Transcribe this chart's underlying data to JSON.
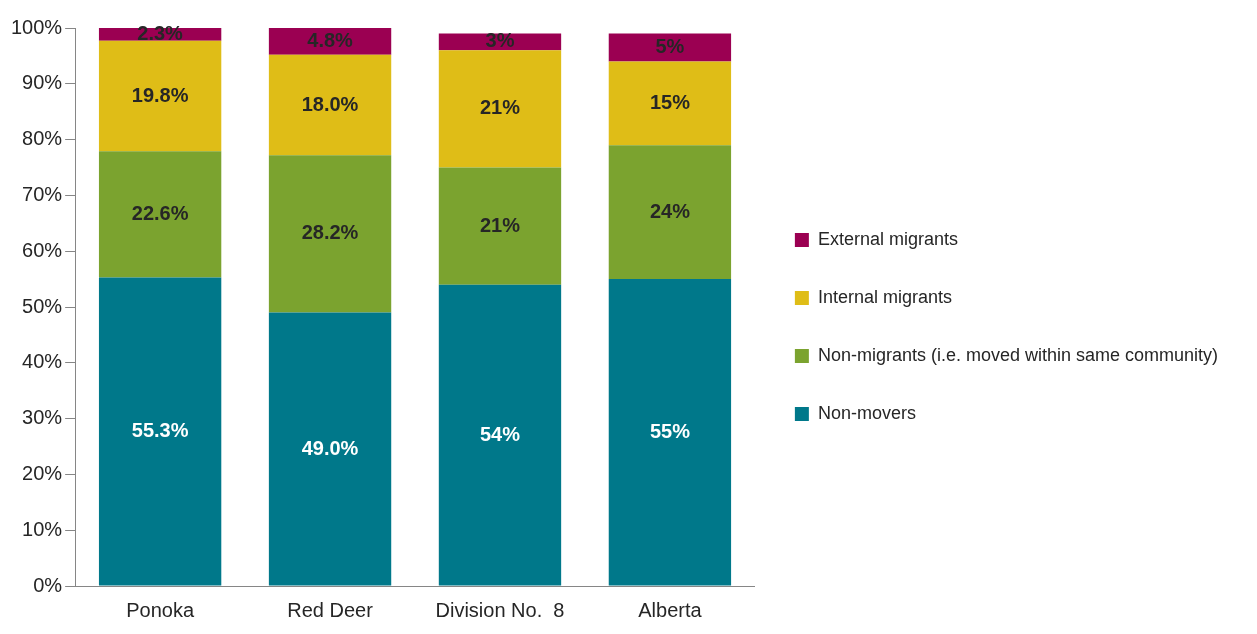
{
  "chart_data": {
    "type": "bar",
    "stacked": true,
    "categories": [
      "Ponoka",
      "Red Deer",
      "Division No.  8",
      "Alberta"
    ],
    "series": [
      {
        "name": "Non-movers",
        "color": "#00788a",
        "values": [
          55.3,
          49.0,
          54,
          55
        ],
        "value_labels": [
          "55.3%",
          "49.0%",
          "54%",
          "55%"
        ]
      },
      {
        "name": "Non-migrants (i.e. moved within same community)",
        "color": "#7ba32f",
        "values": [
          22.6,
          28.2,
          21,
          24
        ],
        "value_labels": [
          "22.6%",
          "28.2%",
          "21%",
          "24%"
        ]
      },
      {
        "name": "Internal migrants",
        "color": "#dfbd17",
        "values": [
          19.8,
          18.0,
          21,
          15
        ],
        "value_labels": [
          "19.8%",
          "18.0%",
          "21%",
          "15%"
        ]
      },
      {
        "name": "External migrants",
        "color": "#9b0052",
        "values": [
          2.3,
          4.8,
          3,
          5
        ],
        "value_labels": [
          "2.3%",
          "4.8%",
          "3%",
          "5%"
        ]
      }
    ],
    "ylim": [
      0,
      100
    ],
    "yticks": [
      {
        "value": 0,
        "label": "0%"
      },
      {
        "value": 10,
        "label": "10%"
      },
      {
        "value": 20,
        "label": "20%"
      },
      {
        "value": 30,
        "label": "30%"
      },
      {
        "value": 40,
        "label": "40%"
      },
      {
        "value": 50,
        "label": "50%"
      },
      {
        "value": 60,
        "label": "60%"
      },
      {
        "value": 70,
        "label": "70%"
      },
      {
        "value": 80,
        "label": "80%"
      },
      {
        "value": 90,
        "label": "90%"
      },
      {
        "value": 100,
        "label": "100%"
      }
    ],
    "grid": false,
    "legend": "right"
  }
}
